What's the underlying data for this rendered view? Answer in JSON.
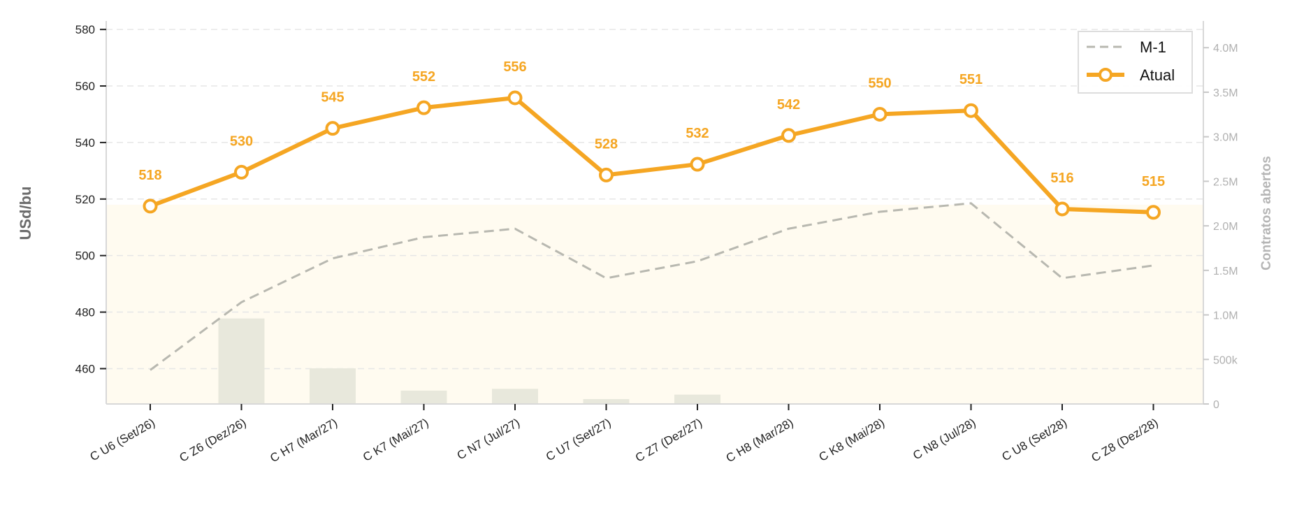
{
  "chart_data": {
    "type": "line",
    "categories": [
      "C U6 (Set/26)",
      "C Z6 (Dez/26)",
      "C H7 (Mar/27)",
      "C K7 (Mai/27)",
      "C N7 (Jul/27)",
      "C U7 (Set/27)",
      "C Z7 (Dez/27)",
      "C H8 (Mar/28)",
      "C K8 (Mai/28)",
      "C N8 (Jul/28)",
      "C U8 (Set/28)",
      "C Z8 (Dez/28)"
    ],
    "series": [
      {
        "name": "Atual",
        "axis": "left",
        "style": "solid-markers",
        "color": "#f5a623",
        "values": [
          517.5,
          529.5,
          545,
          552.3,
          555.8,
          528.5,
          532.3,
          542.5,
          550,
          551.3,
          516.5,
          515.3
        ],
        "data_labels": [
          "518",
          "530",
          "545",
          "552",
          "556",
          "528",
          "532",
          "542",
          "550",
          "551",
          "516",
          "515"
        ]
      },
      {
        "name": "M-1",
        "axis": "left",
        "style": "dashed",
        "color": "#b8b8b0",
        "values": [
          459.5,
          483.5,
          499,
          506.5,
          509.5,
          492,
          498,
          509.5,
          515.5,
          518.5,
          492,
          496.5
        ]
      },
      {
        "name": "Contratos abertos",
        "axis": "right",
        "style": "bar",
        "color": "#e8e8dc",
        "values": [
          0,
          960000,
          400000,
          150000,
          170000,
          55000,
          105000,
          0,
          0,
          0,
          0,
          0
        ]
      }
    ],
    "ylabel": "USd/bu",
    "y2label": "Contratos abertos",
    "ylim": [
      447.5,
      583
    ],
    "y2lim": [
      0,
      4300000
    ],
    "yticks": [
      460,
      480,
      500,
      520,
      540,
      560,
      580
    ],
    "y2ticks": [
      0,
      500000,
      1000000,
      1500000,
      2000000,
      2500000,
      3000000,
      3500000,
      4000000
    ],
    "y2tick_labels": [
      "0",
      "500k",
      "1.0M",
      "1.5M",
      "2.0M",
      "2.5M",
      "3.0M",
      "3.5M",
      "4.0M"
    ],
    "band": {
      "from": 447.5,
      "to": 518,
      "color": "#fffbf0"
    },
    "grid": "horizontal-dashed",
    "legend": {
      "position": "top-right",
      "entries": [
        "M-1",
        "Atual"
      ]
    }
  }
}
